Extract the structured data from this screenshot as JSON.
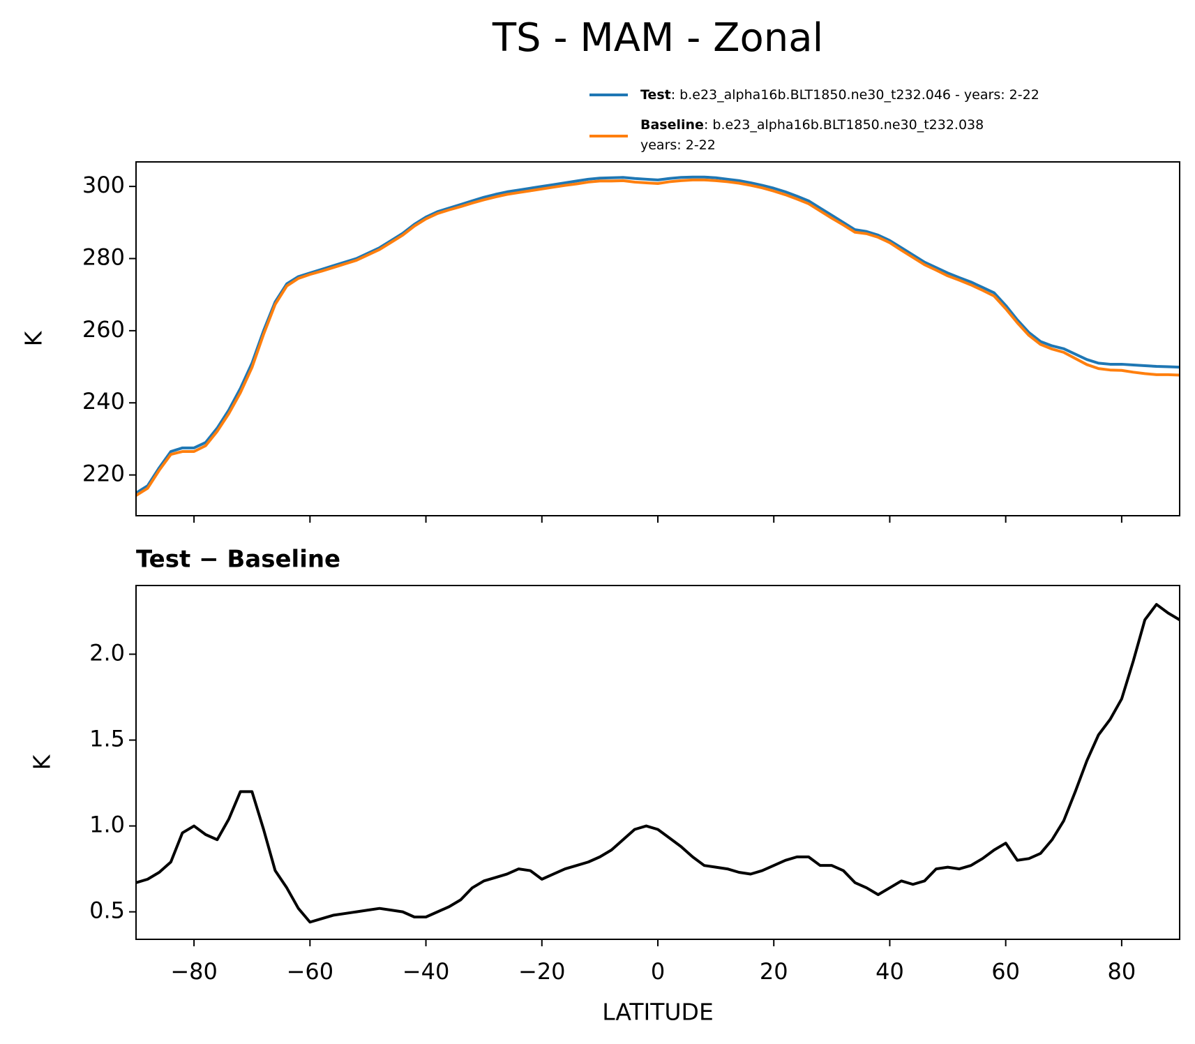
{
  "chart_data": [
    {
      "type": "line",
      "title": "TS - MAM - Zonal",
      "ylabel": "K",
      "x": [
        -90,
        -88,
        -86,
        -84,
        -82,
        -80,
        -78,
        -76,
        -74,
        -72,
        -70,
        -68,
        -66,
        -64,
        -62,
        -60,
        -58,
        -56,
        -54,
        -52,
        -50,
        -48,
        -46,
        -44,
        -42,
        -40,
        -38,
        -36,
        -34,
        -32,
        -30,
        -28,
        -26,
        -24,
        -22,
        -20,
        -18,
        -16,
        -14,
        -12,
        -10,
        -8,
        -6,
        -4,
        -2,
        0,
        2,
        4,
        6,
        8,
        10,
        12,
        14,
        16,
        18,
        20,
        22,
        24,
        26,
        28,
        30,
        32,
        34,
        36,
        38,
        40,
        42,
        44,
        46,
        48,
        50,
        52,
        54,
        56,
        58,
        60,
        62,
        64,
        66,
        68,
        70,
        72,
        74,
        76,
        78,
        80,
        82,
        84,
        86,
        88,
        90
      ],
      "series": [
        {
          "name": "Test",
          "description": [
            ": b.e23_alpha16b.BLT1850.ne30_t232.046 - years: 2-22"
          ],
          "color": "#1f77b4",
          "values": [
            215,
            217,
            222,
            226.5,
            227.5,
            227.5,
            229,
            233,
            238,
            244,
            251,
            260,
            268,
            273,
            275,
            276,
            277,
            278,
            279,
            280,
            281.5,
            283,
            285,
            287,
            289.5,
            291.5,
            293,
            294,
            295,
            296,
            297,
            297.8,
            298.5,
            299,
            299.5,
            300,
            300.5,
            301,
            301.5,
            302,
            302.3,
            302.4,
            302.5,
            302.2,
            302,
            301.8,
            302.2,
            302.5,
            302.6,
            302.6,
            302.4,
            302,
            301.6,
            301,
            300.3,
            299.5,
            298.5,
            297.3,
            296,
            294,
            292,
            290,
            288,
            287.5,
            286.5,
            285,
            283,
            281,
            279,
            277.5,
            276,
            274.7,
            273.5,
            272,
            270.5,
            267,
            263,
            259.5,
            257,
            255.8,
            255,
            253.5,
            252,
            251,
            250.7,
            250.7,
            250.5,
            250.3,
            250.1,
            250,
            249.9
          ]
        },
        {
          "name": "Baseline",
          "description": [
            ": b.e23_alpha16b.BLT1850.ne30_t232.038",
            "years: 2-22"
          ],
          "color": "#ff7f0e",
          "values": [
            214.3,
            216.3,
            221.3,
            225.7,
            226.5,
            226.5,
            228.1,
            232.1,
            237.0,
            242.8,
            249.8,
            259.0,
            267.3,
            272.4,
            274.5,
            275.6,
            276.5,
            277.5,
            278.5,
            279.5,
            281.0,
            282.5,
            284.5,
            286.5,
            289.0,
            291.0,
            292.5,
            293.5,
            294.4,
            295.4,
            296.3,
            297.1,
            297.8,
            298.3,
            298.8,
            299.3,
            299.8,
            300.3,
            300.7,
            301.2,
            301.5,
            301.5,
            301.6,
            301.2,
            301.0,
            300.8,
            301.3,
            301.6,
            301.8,
            301.8,
            301.6,
            301.3,
            300.9,
            300.3,
            299.6,
            298.7,
            297.7,
            296.5,
            295.2,
            293.2,
            291.2,
            289.3,
            287.3,
            286.9,
            285.9,
            284.4,
            282.3,
            280.3,
            278.3,
            276.8,
            275.2,
            274.0,
            272.7,
            271.2,
            269.6,
            266.1,
            262.2,
            258.7,
            256.2,
            254.9,
            254.0,
            252.3,
            250.6,
            249.5,
            249.1,
            249.0,
            248.5,
            248.1,
            247.8,
            247.8,
            247.7
          ]
        }
      ],
      "xlim": [
        -90,
        90
      ],
      "xticks": [
        -80,
        -60,
        -40,
        -20,
        0,
        20,
        40,
        60,
        80
      ],
      "ylim": [
        208.7,
        306.8
      ],
      "yticks": [
        220,
        240,
        260,
        280,
        300
      ]
    },
    {
      "type": "line",
      "title": "Test − Baseline",
      "xlabel": "LATITUDE",
      "ylabel": "K",
      "x": [
        -90,
        -88,
        -86,
        -84,
        -82,
        -80,
        -78,
        -76,
        -74,
        -72,
        -70,
        -68,
        -66,
        -64,
        -62,
        -60,
        -58,
        -56,
        -54,
        -52,
        -50,
        -48,
        -46,
        -44,
        -42,
        -40,
        -38,
        -36,
        -34,
        -32,
        -30,
        -28,
        -26,
        -24,
        -22,
        -20,
        -18,
        -16,
        -14,
        -12,
        -10,
        -8,
        -6,
        -4,
        -2,
        0,
        2,
        4,
        6,
        8,
        10,
        12,
        14,
        16,
        18,
        20,
        22,
        24,
        26,
        28,
        30,
        32,
        34,
        36,
        38,
        40,
        42,
        44,
        46,
        48,
        50,
        52,
        54,
        56,
        58,
        60,
        62,
        64,
        66,
        68,
        70,
        72,
        74,
        76,
        78,
        80,
        82,
        84,
        86,
        88,
        90
      ],
      "series": [
        {
          "color": "#000000",
          "values": [
            0.67,
            0.69,
            0.73,
            0.79,
            0.96,
            1.0,
            0.95,
            0.92,
            1.04,
            1.2,
            1.2,
            0.98,
            0.74,
            0.64,
            0.52,
            0.44,
            0.46,
            0.48,
            0.49,
            0.5,
            0.51,
            0.52,
            0.51,
            0.5,
            0.47,
            0.47,
            0.5,
            0.53,
            0.57,
            0.64,
            0.68,
            0.7,
            0.72,
            0.75,
            0.74,
            0.69,
            0.72,
            0.75,
            0.77,
            0.79,
            0.82,
            0.86,
            0.92,
            0.98,
            1.0,
            0.98,
            0.93,
            0.88,
            0.82,
            0.77,
            0.76,
            0.75,
            0.73,
            0.72,
            0.74,
            0.77,
            0.8,
            0.82,
            0.82,
            0.77,
            0.77,
            0.74,
            0.67,
            0.64,
            0.6,
            0.64,
            0.68,
            0.66,
            0.68,
            0.75,
            0.76,
            0.75,
            0.77,
            0.81,
            0.86,
            0.9,
            0.8,
            0.81,
            0.84,
            0.92,
            1.03,
            1.2,
            1.38,
            1.53,
            1.62,
            1.74,
            1.96,
            2.2,
            2.29,
            2.24,
            2.2
          ]
        }
      ],
      "xlim": [
        -90,
        90
      ],
      "xticks": [
        {
          "value": -80,
          "label": "−80"
        },
        {
          "value": -60,
          "label": "−60"
        },
        {
          "value": -40,
          "label": "−40"
        },
        {
          "value": -20,
          "label": "−20"
        },
        0,
        20,
        40,
        60,
        80
      ],
      "ylim": [
        0.34,
        2.4
      ],
      "yticks": [
        0.5,
        {
          "value": 1,
          "label": "1.0"
        },
        1.5,
        {
          "value": 2,
          "label": "2.0"
        }
      ]
    }
  ]
}
